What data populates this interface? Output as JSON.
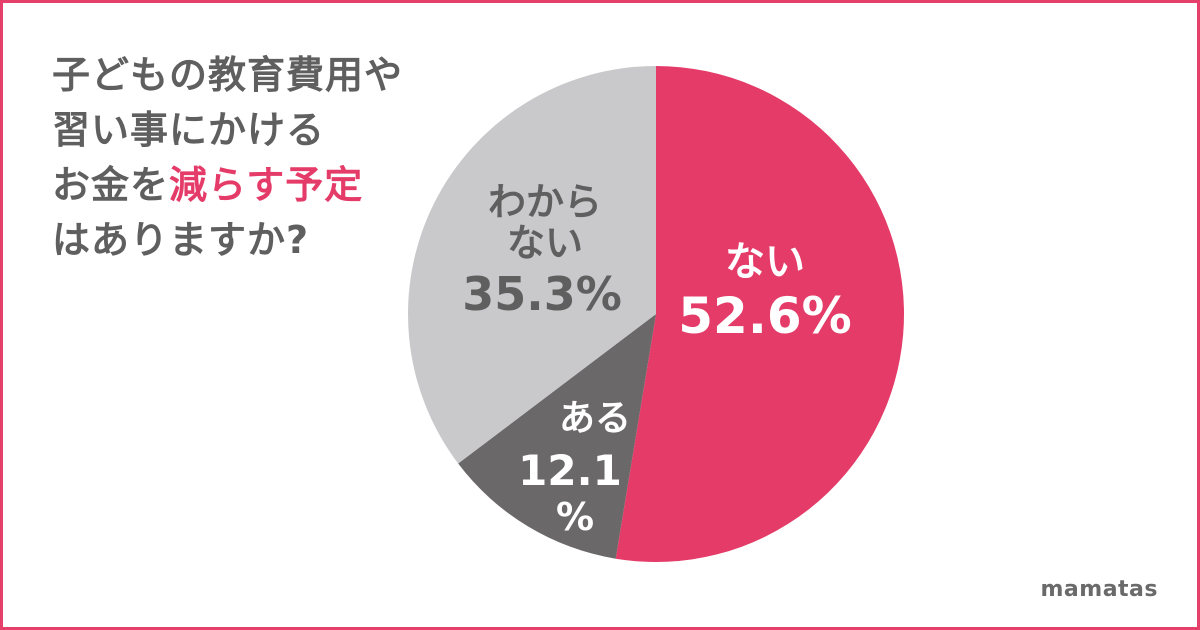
{
  "question": {
    "line1": "子どもの教育費用や",
    "line2": "習い事にかける",
    "line3_pre": "お金を",
    "line3_highlight": "減らす予定",
    "line4": "はありますか?"
  },
  "brand": "mamatas",
  "colors": {
    "frame": "#e4406a",
    "highlight": "#e43b68",
    "text": "#5f5f5f"
  },
  "chart_data": {
    "type": "pie",
    "title": "子どもの教育費用や習い事にかけるお金を減らす予定はありますか?",
    "slices": [
      {
        "label": "ない",
        "value": 52.6,
        "value_text": "52.6%",
        "color": "#e43b68",
        "text_color": "#ffffff"
      },
      {
        "label": "ある",
        "value": 12.1,
        "value_text": "12.1%",
        "color": "#6a6869",
        "text_color": "#ffffff"
      },
      {
        "label": "わからない",
        "value": 35.3,
        "value_text": "35.3%",
        "color": "#c9c8ca",
        "text_color": "#5f5f5f"
      }
    ],
    "start": "top",
    "direction": "clockwise"
  }
}
